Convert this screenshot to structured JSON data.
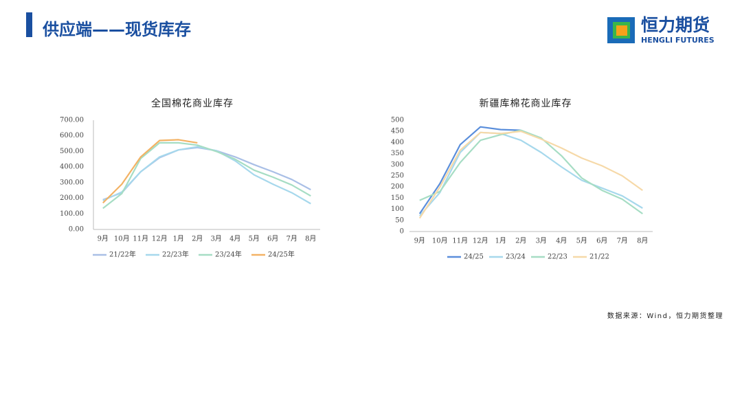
{
  "header": {
    "title": "供应端——现货库存",
    "logo_cn": "恒力期货",
    "logo_en": "HENGLI FUTURES"
  },
  "source": "数据来源：Wind，恒力期货整理",
  "chart_data": [
    {
      "type": "line",
      "title": "全国棉花商业库存",
      "categories": [
        "9月",
        "10月",
        "11月",
        "12月",
        "1月",
        "2月",
        "3月",
        "4月",
        "5月",
        "6月",
        "7月",
        "8月"
      ],
      "ylim": [
        0,
        700
      ],
      "yticks": [
        {
          "value": 0,
          "label": "0.00"
        },
        {
          "value": 100,
          "label": "100.00"
        },
        {
          "value": 200,
          "label": "200.00"
        },
        {
          "value": 300,
          "label": "300.00"
        },
        {
          "value": 400,
          "label": "400.00"
        },
        {
          "value": 500,
          "label": "500.00"
        },
        {
          "value": 600,
          "label": "600.00"
        },
        {
          "value": 700,
          "label": "700.00"
        }
      ],
      "series": [
        {
          "name": "21/22年",
          "color": "#a9bfe6",
          "values": [
            190,
            235,
            370,
            460,
            510,
            525,
            505,
            465,
            415,
            370,
            320,
            255
          ]
        },
        {
          "name": "22/23年",
          "color": "#a6d8ec",
          "values": [
            185,
            240,
            370,
            465,
            510,
            530,
            505,
            440,
            350,
            290,
            235,
            165
          ]
        },
        {
          "name": "23/24年",
          "color": "#a6ddc4",
          "values": [
            135,
            230,
            455,
            555,
            555,
            540,
            500,
            450,
            380,
            335,
            285,
            215
          ]
        },
        {
          "name": "24/25年",
          "color": "#f3b264",
          "values": [
            170,
            290,
            465,
            570,
            575,
            555,
            null,
            null,
            null,
            null,
            null,
            null
          ]
        }
      ]
    },
    {
      "type": "line",
      "title": "新疆库棉花商业库存",
      "categories": [
        "9月",
        "10月",
        "11月",
        "12月",
        "1月",
        "2月",
        "3月",
        "4月",
        "5月",
        "6月",
        "7月",
        "8月"
      ],
      "ylim": [
        0,
        500
      ],
      "yticks": [
        0,
        50,
        100,
        150,
        200,
        250,
        300,
        350,
        400,
        450,
        500
      ],
      "series": [
        {
          "name": "24/25",
          "color": "#5a8edb",
          "values": [
            80,
            215,
            390,
            470,
            458,
            455,
            null,
            null,
            null,
            null,
            null,
            null
          ]
        },
        {
          "name": "23/24",
          "color": "#a6d8ec",
          "values": [
            70,
            175,
            355,
            445,
            440,
            410,
            355,
            290,
            230,
            195,
            160,
            105
          ]
        },
        {
          "name": "22/23",
          "color": "#a6ddc4",
          "values": [
            140,
            180,
            310,
            410,
            435,
            455,
            420,
            340,
            240,
            185,
            145,
            80
          ]
        },
        {
          "name": "21/22",
          "color": "#f6d9a8",
          "values": [
            60,
            200,
            365,
            445,
            440,
            450,
            415,
            375,
            330,
            295,
            250,
            185
          ]
        }
      ]
    }
  ]
}
